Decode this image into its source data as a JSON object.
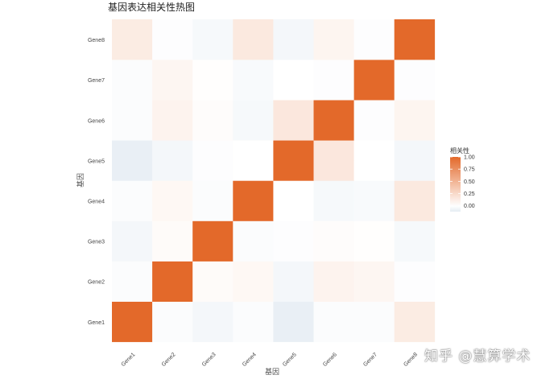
{
  "watermark": "知乎 @慧算学术",
  "colors": {
    "low": "#e4ecf3",
    "mid": "#ffffff",
    "high": "#e3692a",
    "grid": "#ebebeb",
    "background": "#ffffff"
  },
  "chart_data": {
    "type": "heatmap",
    "title": "基因表达相关性热图",
    "xlabel": "基因",
    "ylabel": "基因",
    "x_categories": [
      "Gene1",
      "Gene2",
      "Gene3",
      "Gene4",
      "Gene5",
      "Gene6",
      "Gene7",
      "Gene8"
    ],
    "y_categories": [
      "Gene1",
      "Gene2",
      "Gene3",
      "Gene4",
      "Gene5",
      "Gene6",
      "Gene7",
      "Gene8"
    ],
    "values": [
      [
        1.0,
        -0.02,
        -0.05,
        -0.02,
        -0.1,
        -0.02,
        -0.02,
        0.13
      ],
      [
        -0.02,
        1.0,
        0.03,
        0.05,
        -0.05,
        0.08,
        0.06,
        -0.01
      ],
      [
        -0.05,
        0.03,
        1.0,
        -0.02,
        -0.01,
        0.02,
        0.01,
        -0.04
      ],
      [
        -0.02,
        0.05,
        -0.02,
        1.0,
        0.0,
        -0.04,
        -0.03,
        0.15
      ],
      [
        -0.1,
        -0.05,
        -0.01,
        0.0,
        1.0,
        0.16,
        0.0,
        -0.05
      ],
      [
        -0.02,
        0.08,
        0.02,
        -0.04,
        0.16,
        1.0,
        -0.01,
        0.07
      ],
      [
        -0.02,
        0.06,
        0.01,
        -0.03,
        0.0,
        -0.01,
        1.0,
        -0.01
      ],
      [
        0.13,
        -0.01,
        -0.04,
        0.15,
        -0.05,
        0.07,
        -0.01,
        1.0
      ]
    ],
    "color_range": [
      -0.12,
      1.0
    ],
    "legend": {
      "title": "相关性",
      "ticks": [
        1.0,
        0.75,
        0.5,
        0.25,
        0.0
      ],
      "tick_labels": [
        "1.00",
        "0.75",
        "0.50",
        "0.25",
        "0.00"
      ],
      "placement": "right"
    },
    "grid": true
  }
}
